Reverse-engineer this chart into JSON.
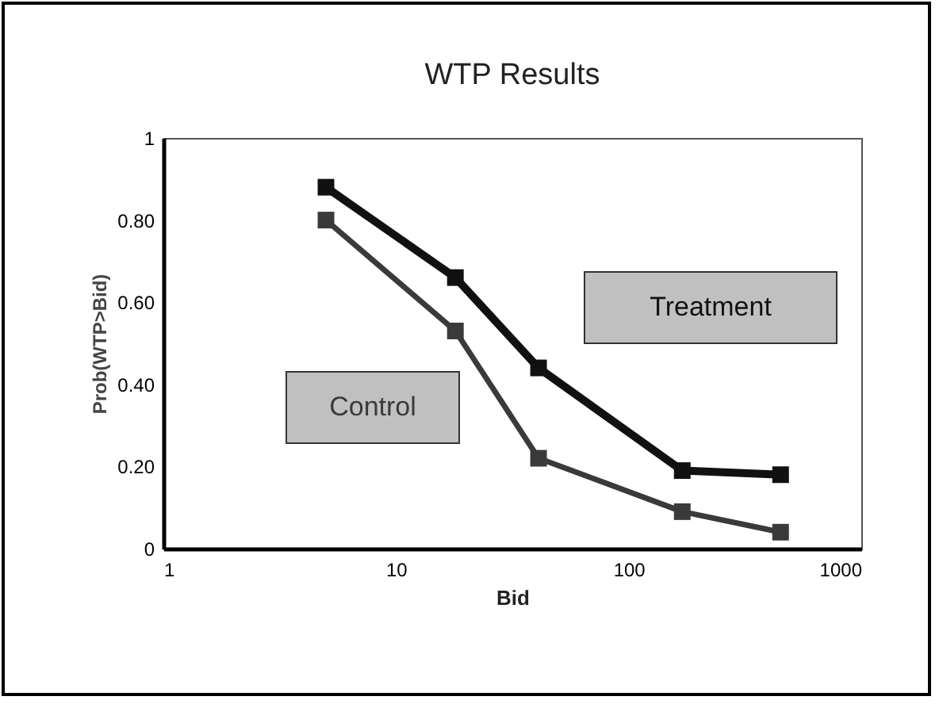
{
  "chart_data": {
    "type": "line",
    "title": "WTP Results",
    "xlabel": "Bid",
    "ylabel": "Prob(WTP>Bid)",
    "x": [
      5,
      18,
      41,
      170,
      450
    ],
    "series": [
      {
        "name": "Treatment",
        "color": "#111111",
        "values": [
          0.88,
          0.66,
          0.44,
          0.19,
          0.18
        ]
      },
      {
        "name": "Control",
        "color": "#3a3a3a",
        "values": [
          0.8,
          0.53,
          0.22,
          0.09,
          0.04
        ]
      }
    ],
    "log": "x",
    "xlim": [
      1,
      1000
    ],
    "xticks": [
      1,
      10,
      100,
      1000
    ],
    "ylim": [
      0,
      1
    ],
    "yticks": [
      0,
      {
        "value": 0.2,
        "label": "0.20"
      },
      {
        "value": 0.4,
        "label": "0.40"
      },
      {
        "value": 0.6,
        "label": "0.60"
      },
      {
        "value": 0.8,
        "label": "0.80"
      },
      1
    ],
    "grid": false,
    "legend": false,
    "marker": "square",
    "line_style": "solid"
  }
}
